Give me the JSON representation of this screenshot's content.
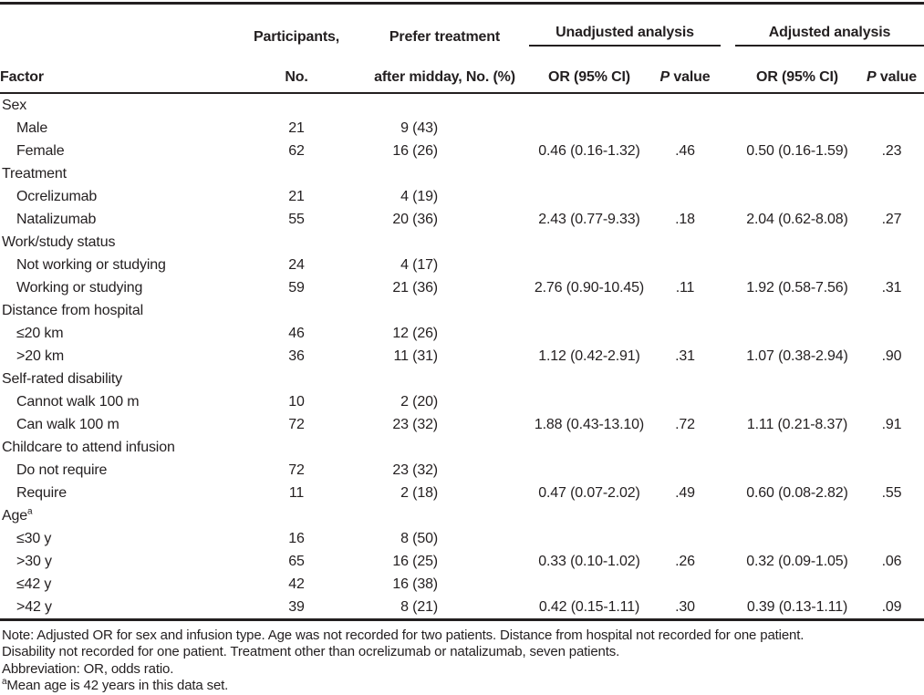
{
  "table": {
    "header": {
      "factor": "Factor",
      "participants_line1": "Participants,",
      "participants_line2": "No.",
      "prefer_line1": "Prefer treatment",
      "prefer_line2": "after midday, No. (%)",
      "group_unadjusted": "Unadjusted analysis",
      "group_adjusted": "Adjusted analysis",
      "or_label": "OR (95% CI)",
      "p_italic": "P",
      "p_rest": " value"
    },
    "rows": [
      {
        "type": "group",
        "factor": "Sex"
      },
      {
        "type": "item",
        "factor": "Male",
        "n": "21",
        "prefer": "9 (43)"
      },
      {
        "type": "item",
        "factor": "Female",
        "n": "62",
        "prefer": "16 (26)",
        "u_or": "0.46 (0.16-1.32)",
        "u_p": ".46",
        "a_or": "0.50 (0.16-1.59)",
        "a_p": ".23"
      },
      {
        "type": "group",
        "factor": "Treatment"
      },
      {
        "type": "item",
        "factor": "Ocrelizumab",
        "n": "21",
        "prefer": "4 (19)"
      },
      {
        "type": "item",
        "factor": "Natalizumab",
        "n": "55",
        "prefer": "20 (36)",
        "u_or": "2.43 (0.77-9.33)",
        "u_p": ".18",
        "a_or": "2.04 (0.62-8.08)",
        "a_p": ".27"
      },
      {
        "type": "group",
        "factor": "Work/study status"
      },
      {
        "type": "item",
        "factor": "Not working or studying",
        "n": "24",
        "prefer": "4 (17)"
      },
      {
        "type": "item",
        "factor": "Working or studying",
        "n": "59",
        "prefer": "21 (36)",
        "u_or": "2.76 (0.90-10.45)",
        "u_p": ".11",
        "a_or": "1.92 (0.58-7.56)",
        "a_p": ".31"
      },
      {
        "type": "group",
        "factor": "Distance from hospital"
      },
      {
        "type": "item",
        "factor": "≤20 km",
        "n": "46",
        "prefer": "12 (26)"
      },
      {
        "type": "item",
        "factor": ">20 km",
        "n": "36",
        "prefer": "11 (31)",
        "u_or": "1.12 (0.42-2.91)",
        "u_p": ".31",
        "a_or": "1.07 (0.38-2.94)",
        "a_p": ".90"
      },
      {
        "type": "group",
        "factor": "Self-rated disability"
      },
      {
        "type": "item",
        "factor": "Cannot walk 100 m",
        "n": "10",
        "prefer": "2 (20)"
      },
      {
        "type": "item",
        "factor": "Can walk 100 m",
        "n": "72",
        "prefer": "23 (32)",
        "u_or": "1.88 (0.43-13.10)",
        "u_p": ".72",
        "a_or": "1.11 (0.21-8.37)",
        "a_p": ".91"
      },
      {
        "type": "group",
        "factor": "Childcare to attend infusion"
      },
      {
        "type": "item",
        "factor": "Do not require",
        "n": "72",
        "prefer": "23 (32)"
      },
      {
        "type": "item",
        "factor": "Require",
        "n": "11",
        "prefer": "2 (18)",
        "u_or": "0.47 (0.07-2.02)",
        "u_p": ".49",
        "a_or": "0.60 (0.08-2.82)",
        "a_p": ".55"
      },
      {
        "type": "group",
        "factor": "Age",
        "sup": "a"
      },
      {
        "type": "item",
        "factor": "≤30 y",
        "n": "16",
        "prefer": "8 (50)"
      },
      {
        "type": "item",
        "factor": ">30 y",
        "n": "65",
        "prefer": "16 (25)",
        "u_or": "0.33 (0.10-1.02)",
        "u_p": ".26",
        "a_or": "0.32 (0.09-1.05)",
        "a_p": ".06"
      },
      {
        "type": "item",
        "factor": "≤42 y",
        "n": "42",
        "prefer": "16 (38)"
      },
      {
        "type": "item",
        "factor": ">42 y",
        "n": "39",
        "prefer": "8 (21)",
        "u_or": "0.42 (0.15-1.11)",
        "u_p": ".30",
        "a_or": "0.39 (0.13-1.11)",
        "a_p": ".09"
      }
    ]
  },
  "footnotes": {
    "note_lines": [
      "Note: Adjusted OR for sex and infusion type. Age was not recorded for two patients. Distance from hospital not recorded for one patient.",
      "Disability not recorded for one patient. Treatment other than ocrelizumab or natalizumab, seven patients."
    ],
    "abbreviation": "Abbreviation: OR, odds ratio.",
    "footnote_a_sup": "a",
    "footnote_a_text": "Mean age is 42 years in this data set."
  }
}
